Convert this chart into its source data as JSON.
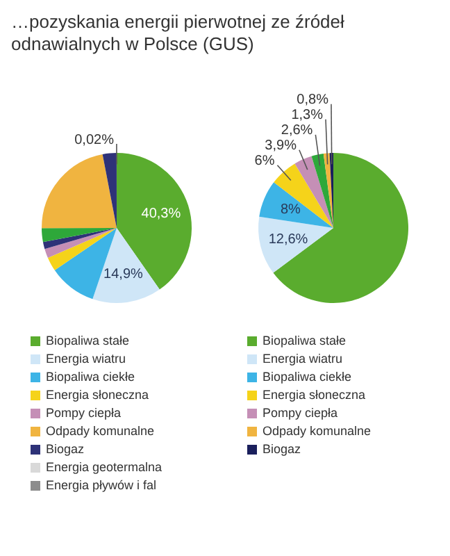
{
  "chart_data": [
    {
      "type": "pie",
      "title": "…pozyskania energii pierwotnej ze źródeł odnawialnych w Polsce (GUS)",
      "legend": "bottom",
      "categories": [
        "Biopaliwa stałe",
        "Energia wiatru",
        "Biopaliwa ciekłe",
        "Energia słoneczna",
        "Pompy ciepła",
        null,
        null,
        "Odpady komunalne",
        "Biogaz",
        null,
        "Energia geotermalna",
        "Energia pływów i fal"
      ],
      "values": [
        40.3,
        14.9,
        10.28,
        3,
        2,
        1.5,
        3,
        22,
        3,
        0.02,
        null,
        null
      ],
      "colors": [
        "#5aac2e",
        "#cfe6f7",
        "#3db4e6",
        "#f5d31a",
        "#c58fb6",
        "#2e3278",
        "#2ea83a",
        "#f0b440",
        "#2e3278",
        "#1a1f5c",
        "#d9d9d9",
        "#8c8c8c"
      ],
      "value_labels": [
        "40,3%",
        "14,9%",
        null,
        null,
        null,
        null,
        null,
        null,
        null,
        "0,02%",
        null,
        null
      ]
    },
    {
      "type": "pie",
      "legend": "bottom",
      "categories": [
        "Biopaliwa stałe",
        "Energia wiatru",
        "Biopaliwa ciekłe",
        "Energia słoneczna",
        "Pompy ciepła",
        null,
        "Odpady komunalne",
        "Biogaz"
      ],
      "values": [
        64.8,
        12.6,
        8,
        6,
        3.9,
        2.6,
        1.3,
        0.8
      ],
      "colors": [
        "#5aac2e",
        "#cfe6f7",
        "#3db4e6",
        "#f5d31a",
        "#c58fb6",
        "#2ea83a",
        "#f0b440",
        "#1a1f5c"
      ],
      "value_labels": [
        null,
        "12,6%",
        "8%",
        "6%",
        "3,9%",
        "2,6%",
        "1,3%",
        "0,8%"
      ]
    }
  ]
}
